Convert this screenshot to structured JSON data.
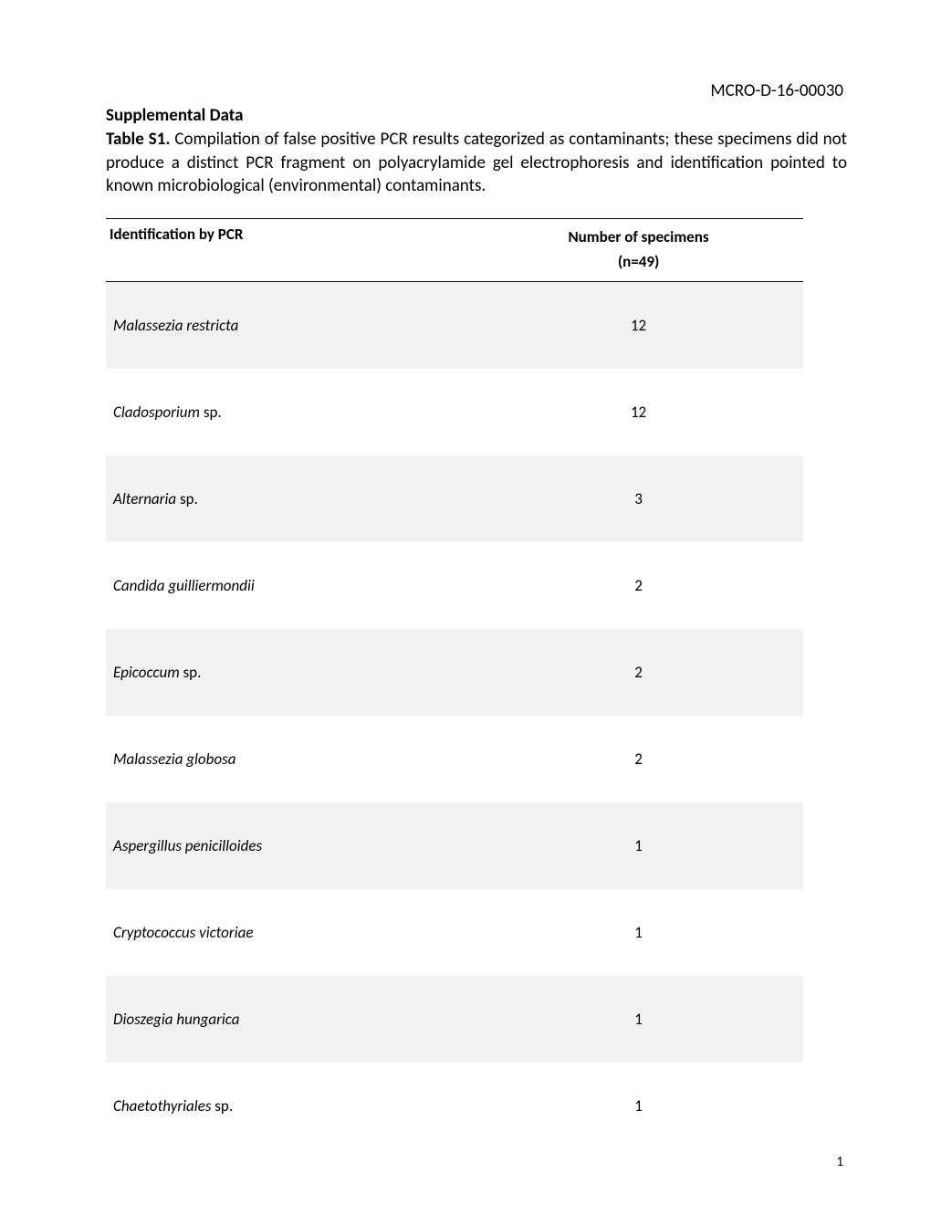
{
  "document_id": "MCRO-D-16-00030",
  "section_title": "Supplemental Data",
  "caption_bold": "Table S1.",
  "caption_text": " Compilation of false positive PCR results categorized as contaminants; these specimens did not produce a distinct PCR fragment on polyacrylamide gel electrophoresis and identification pointed to known microbiological (environmental) contaminants.",
  "table": {
    "header_id": "Identification by PCR",
    "header_n_line1": "Number of specimens",
    "header_n_line2": "(n=49)",
    "rows": [
      {
        "name": "Malassezia restricta",
        "suffix": "",
        "count": "12",
        "shaded": true
      },
      {
        "name": "Cladosporium",
        "suffix": " sp.",
        "count": "12",
        "shaded": false
      },
      {
        "name": "Alternaria",
        "suffix": " sp.",
        "count": "3",
        "shaded": true
      },
      {
        "name": "Candida guilliermondii",
        "suffix": "",
        "count": "2",
        "shaded": false
      },
      {
        "name": "Epicoccum",
        "suffix": " sp.",
        "count": "2",
        "shaded": true
      },
      {
        "name": "Malassezia globosa",
        "suffix": "",
        "count": "2",
        "shaded": false
      },
      {
        "name": "Aspergillus penicilloides",
        "suffix": "",
        "count": "1",
        "shaded": true
      },
      {
        "name": "Cryptococcus victoriae",
        "suffix": "",
        "count": "1",
        "shaded": false
      },
      {
        "name": "Dioszegia hungarica",
        "suffix": "",
        "count": "1",
        "shaded": true
      },
      {
        "name": "Chaetothyriales",
        "suffix": " sp.",
        "count": "1",
        "shaded": false
      }
    ]
  },
  "page_number": "1",
  "colors": {
    "background": "#ffffff",
    "text": "#000000",
    "shaded_row": "#f2f2f2",
    "border": "#000000"
  },
  "typography": {
    "body_fontsize_pt": 14,
    "header_fontsize_pt": 13,
    "font_family": "Calibri"
  }
}
